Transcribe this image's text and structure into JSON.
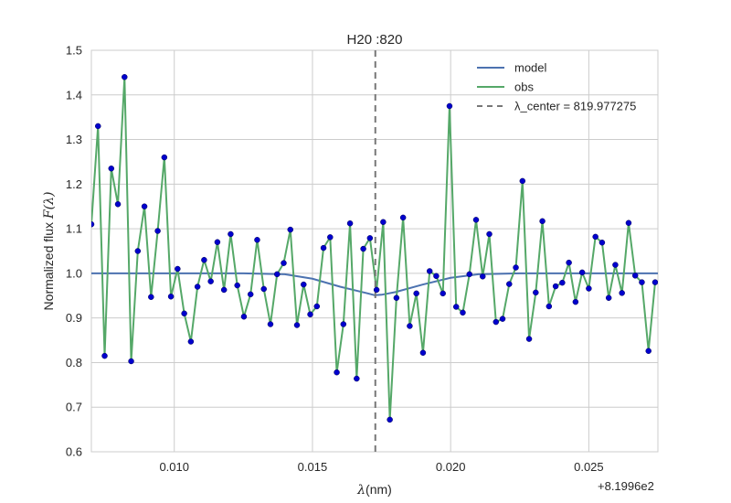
{
  "chart_data": {
    "type": "line",
    "title": "H20 :820",
    "xlabel_prefix": "λ",
    "xlabel_suffix": "(nm)",
    "ylabel_prefix": "Normalized flux ",
    "ylabel_italic": "F",
    "ylabel_suffix": "(λ)",
    "x_offset_label": "+8.1996e2",
    "x_offset": 819.96,
    "xlim": [
      819.967,
      819.9875
    ],
    "ylim": [
      0.6,
      1.5
    ],
    "xticks": [
      0.01,
      0.015,
      0.02,
      0.025
    ],
    "xtick_labels": [
      "0.010",
      "0.015",
      "0.020",
      "0.025"
    ],
    "yticks": [
      0.6,
      0.7,
      0.8,
      0.9,
      1.0,
      1.1,
      1.2,
      1.3,
      1.4,
      1.5
    ],
    "ytick_labels": [
      "0.6",
      "0.7",
      "0.8",
      "0.9",
      "1.0",
      "1.1",
      "1.2",
      "1.3",
      "1.4",
      "1.5"
    ],
    "grid": true,
    "legend_position": "top-right",
    "line_center": 819.977275,
    "series": [
      {
        "name": "model",
        "color": "#4c72b0",
        "style": "solid",
        "x": [
          819.967,
          819.9725,
          819.974,
          819.975,
          819.976,
          819.977,
          819.97725,
          819.9775,
          819.978,
          819.979,
          819.98,
          819.981,
          819.9825,
          819.9875
        ],
        "y": [
          1.0,
          1.0,
          0.998,
          0.988,
          0.97,
          0.955,
          0.951,
          0.952,
          0.958,
          0.975,
          0.99,
          0.998,
          1.0,
          1.0
        ]
      },
      {
        "name": "obs",
        "color": "#55a868",
        "marker_color": "#0000cd",
        "style": "solid",
        "x": [
          819.967,
          819.96724,
          819.96748,
          819.96772,
          819.96796,
          819.9682,
          819.96844,
          819.96868,
          819.96892,
          819.96916,
          819.9694,
          819.96964,
          819.96988,
          819.97012,
          819.97036,
          819.9706,
          819.97084,
          819.97108,
          819.97132,
          819.97156,
          819.9718,
          819.97204,
          819.97228,
          819.97252,
          819.97276,
          819.973,
          819.97324,
          819.97348,
          819.97372,
          819.97396,
          819.9742,
          819.97444,
          819.97468,
          819.97492,
          819.97516,
          819.9754,
          819.97564,
          819.97588,
          819.97612,
          819.97636,
          819.9766,
          819.97684,
          819.97708,
          819.97732,
          819.97756,
          819.9778,
          819.97804,
          819.97828,
          819.97852,
          819.97876,
          819.979,
          819.97924,
          819.97948,
          819.97972,
          819.97996,
          819.9802,
          819.98044,
          819.98068,
          819.98092,
          819.98116,
          819.9814,
          819.98164,
          819.98188,
          819.98212,
          819.98236,
          819.9826,
          819.98284,
          819.98308,
          819.98332,
          819.98356,
          819.9838,
          819.98404,
          819.98428,
          819.98452,
          819.98476,
          819.985,
          819.98524,
          819.98548,
          819.98572,
          819.98596,
          819.9862,
          819.98644,
          819.98668,
          819.98692,
          819.98716,
          819.9874
        ],
        "y": [
          1.11,
          1.33,
          0.815,
          1.235,
          1.155,
          1.44,
          0.803,
          1.05,
          1.15,
          0.947,
          1.095,
          1.26,
          0.948,
          1.01,
          0.91,
          0.847,
          0.97,
          1.03,
          0.982,
          1.07,
          0.963,
          1.088,
          0.973,
          0.903,
          0.953,
          1.075,
          0.965,
          0.886,
          0.998,
          1.023,
          1.098,
          0.884,
          0.975,
          0.908,
          0.926,
          1.057,
          1.081,
          0.778,
          0.886,
          1.112,
          0.764,
          1.055,
          1.079,
          0.963,
          1.115,
          0.672,
          0.945,
          1.125,
          0.882,
          0.955,
          0.822,
          1.005,
          0.994,
          0.955,
          1.375,
          0.925,
          0.912,
          0.998,
          1.12,
          0.993,
          1.088,
          0.891,
          0.898,
          0.976,
          1.013,
          1.207,
          0.853,
          0.957,
          1.117,
          0.926,
          0.971,
          0.979,
          1.024,
          0.936,
          1.002,
          0.966,
          1.082,
          1.069,
          0.945,
          1.019,
          0.956,
          1.113,
          0.995,
          0.98,
          0.826,
          0.98
        ]
      }
    ],
    "legend": [
      {
        "label": "model",
        "color": "#4c72b0",
        "style": "solid"
      },
      {
        "label": "obs",
        "color": "#55a868",
        "style": "solid"
      },
      {
        "label": "λ_center = 819.977275",
        "color": "#777777",
        "style": "dashed"
      }
    ]
  }
}
